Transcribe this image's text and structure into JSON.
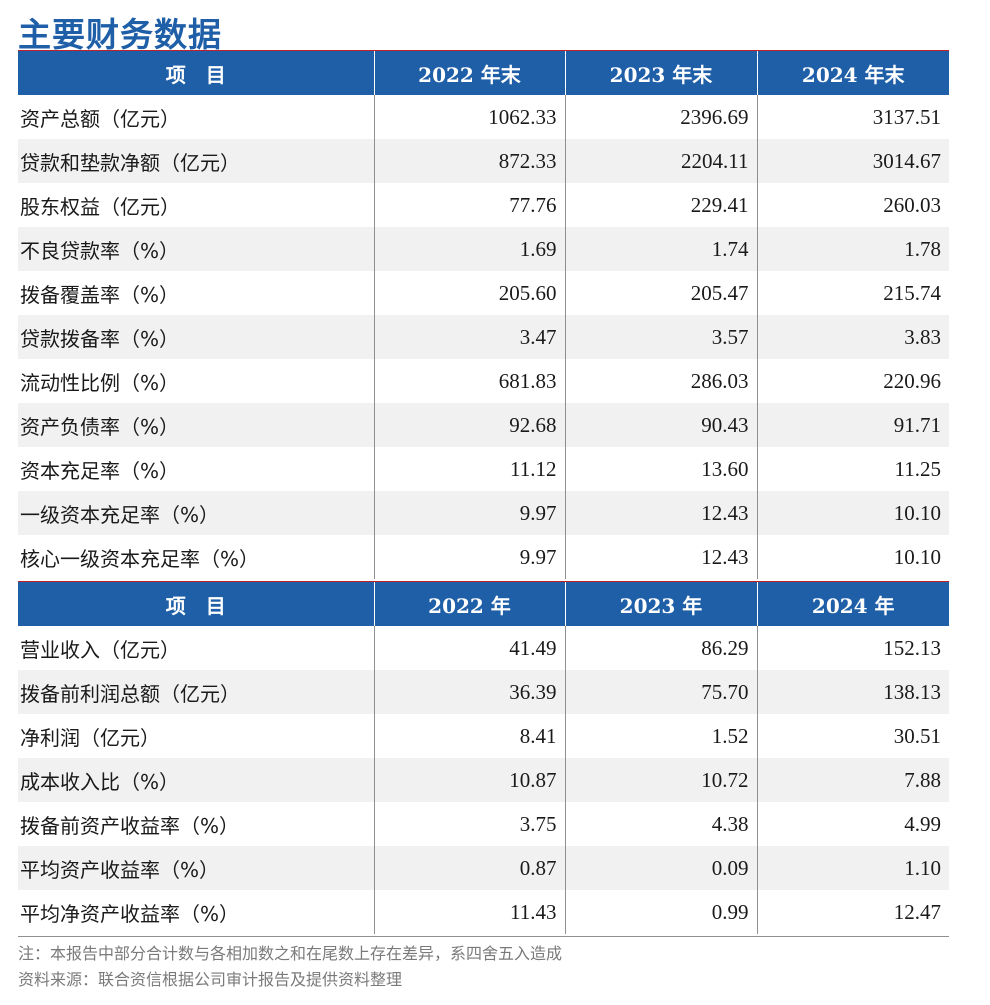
{
  "title": "主要财务数据",
  "table1": {
    "headers": [
      "项　目",
      "2022 年末",
      "2023 年末",
      "2024 年末"
    ],
    "rows": [
      {
        "label": "资产总额（亿元）",
        "values": [
          "1062.33",
          "2396.69",
          "3137.51"
        ]
      },
      {
        "label": "贷款和垫款净额（亿元）",
        "values": [
          "872.33",
          "2204.11",
          "3014.67"
        ]
      },
      {
        "label": "股东权益（亿元）",
        "values": [
          "77.76",
          "229.41",
          "260.03"
        ]
      },
      {
        "label": "不良贷款率（%）",
        "values": [
          "1.69",
          "1.74",
          "1.78"
        ]
      },
      {
        "label": "拨备覆盖率（%）",
        "values": [
          "205.60",
          "205.47",
          "215.74"
        ]
      },
      {
        "label": "贷款拨备率（%）",
        "values": [
          "3.47",
          "3.57",
          "3.83"
        ]
      },
      {
        "label": "流动性比例（%）",
        "values": [
          "681.83",
          "286.03",
          "220.96"
        ]
      },
      {
        "label": "资产负债率（%）",
        "values": [
          "92.68",
          "90.43",
          "91.71"
        ]
      },
      {
        "label": "资本充足率（%）",
        "values": [
          "11.12",
          "13.60",
          "11.25"
        ]
      },
      {
        "label": "一级资本充足率（%）",
        "values": [
          "9.97",
          "12.43",
          "10.10"
        ]
      },
      {
        "label": "核心一级资本充足率（%）",
        "values": [
          "9.97",
          "12.43",
          "10.10"
        ]
      }
    ]
  },
  "table2": {
    "headers": [
      "项　目",
      "2022 年",
      "2023 年",
      "2024 年"
    ],
    "rows": [
      {
        "label": "营业收入（亿元）",
        "values": [
          "41.49",
          "86.29",
          "152.13"
        ]
      },
      {
        "label": "拨备前利润总额（亿元）",
        "values": [
          "36.39",
          "75.70",
          "138.13"
        ]
      },
      {
        "label": "净利润（亿元）",
        "values": [
          "8.41",
          "1.52",
          "30.51"
        ]
      },
      {
        "label": "成本收入比（%）",
        "values": [
          "10.87",
          "10.72",
          "7.88"
        ]
      },
      {
        "label": "拨备前资产收益率（%）",
        "values": [
          "3.75",
          "4.38",
          "4.99"
        ]
      },
      {
        "label": "平均资产收益率（%）",
        "values": [
          "0.87",
          "0.09",
          "1.10"
        ]
      },
      {
        "label": "平均净资产收益率（%）",
        "values": [
          "11.43",
          "0.99",
          "12.47"
        ]
      }
    ]
  },
  "notes": {
    "note": "注：本报告中部分合计数与各相加数之和在尾数上存在差异，系四舍五入造成",
    "source": "资料来源：联合资信根据公司审计报告及提供资料整理"
  },
  "colors": {
    "header_bg": "#1f5fa8",
    "title": "#1f5fa8",
    "accent_line": "#c0202a",
    "alt_row": "#f1f1f1"
  }
}
